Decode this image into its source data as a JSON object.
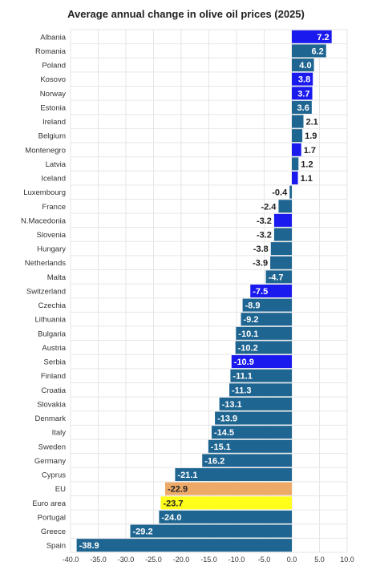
{
  "chart_data": {
    "type": "bar",
    "orientation": "horizontal",
    "title": "Average annual change in olive oil prices (2025)",
    "xlim": [
      -40.0,
      10.0
    ],
    "xticks": [
      "-40.0",
      "-35.0",
      "-30.0",
      "-25.0",
      "-20.0",
      "-15.0",
      "-10.0",
      "-5.0",
      "0.0",
      "5.0",
      "10.0"
    ],
    "grid": true,
    "colors": {
      "default": "#1f6591",
      "highlight": "#1a1aef",
      "eu": "#eda968",
      "euro_area": "#ffff1a"
    },
    "categories": [
      "Albania",
      "Romania",
      "Poland",
      "Kosovo",
      "Norway",
      "Estonia",
      "Ireland",
      "Belgium",
      "Montenegro",
      "Latvia",
      "Iceland",
      "Luxembourg",
      "France",
      "N.Macedonia",
      "Slovenia",
      "Hungary",
      "Netherlands",
      "Malta",
      "Switzerland",
      "Czechia",
      "Lithuania",
      "Bulgaria",
      "Austria",
      "Serbia",
      "Finland",
      "Croatia",
      "Slovakia",
      "Denmark",
      "Italy",
      "Sweden",
      "Germany",
      "Cyprus",
      "EU",
      "Euro area",
      "Portugal",
      "Greece",
      "Spain"
    ],
    "values": [
      7.2,
      6.2,
      4.0,
      3.8,
      3.7,
      3.6,
      2.1,
      1.9,
      1.7,
      1.2,
      1.1,
      -0.4,
      -2.4,
      -3.2,
      -3.2,
      -3.8,
      -3.9,
      -4.7,
      -7.5,
      -8.9,
      -9.2,
      -10.1,
      -10.2,
      -10.9,
      -11.1,
      -11.3,
      -13.1,
      -13.9,
      -14.5,
      -15.1,
      -16.2,
      -21.1,
      -22.9,
      -23.7,
      -24.0,
      -29.2,
      -38.9
    ],
    "value_labels": [
      "7.2",
      "6.2",
      "4.0",
      "3.8",
      "3.7",
      "3.6",
      "2.1",
      "1.9",
      "1.7",
      "1.2",
      "1.1",
      "-0.4",
      "-2.4",
      "-3.2",
      "-3.2",
      "-3.8",
      "-3.9",
      "-4.7",
      "-7.5",
      "-8.9",
      "-9.2",
      "-10.1",
      "-10.2",
      "-10.9",
      "-11.1",
      "-11.3",
      "-13.1",
      "-13.9",
      "-14.5",
      "-15.1",
      "-16.2",
      "-21.1",
      "-22.9",
      "-23.7",
      "-24.0",
      "-29.2",
      "-38.9"
    ],
    "bar_color_keys": [
      "highlight",
      "default",
      "default",
      "highlight",
      "highlight",
      "default",
      "default",
      "default",
      "highlight",
      "default",
      "highlight",
      "default",
      "default",
      "highlight",
      "default",
      "default",
      "default",
      "default",
      "highlight",
      "default",
      "default",
      "default",
      "default",
      "highlight",
      "default",
      "default",
      "default",
      "default",
      "default",
      "default",
      "default",
      "default",
      "eu",
      "euro_area",
      "default",
      "default",
      "default"
    ]
  }
}
